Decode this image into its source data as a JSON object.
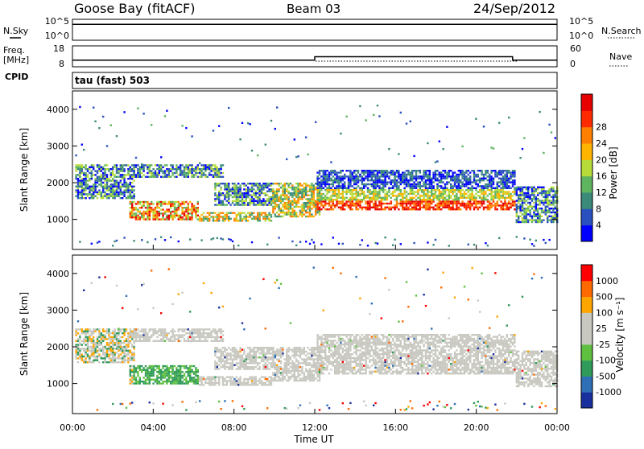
{
  "header": {
    "station": "Goose Bay (fitACF)",
    "beam": "Beam 03",
    "date": "24/Sep/2012"
  },
  "labels": {
    "nsky": "N.Sky",
    "nsearch": "N.Search",
    "freq_line1": "Freq.",
    "freq_line2": "[MHz]",
    "nave": "Nave",
    "cpid": "CPID",
    "cpid_value": "tau (fast) 503"
  },
  "colors": {
    "power_scale": [
      "#0000ff",
      "#2a4fbf",
      "#3b8a7a",
      "#5fb45f",
      "#b7dc3a",
      "#ffb400",
      "#ff7f00",
      "#ff2a00",
      "#e60000"
    ],
    "velocity_scale": [
      "#1a2f9e",
      "#2f6fb5",
      "#2f9a5a",
      "#5fc040",
      "#c8c8c0",
      "#c8c8c0",
      "#ffa500",
      "#ff6a00",
      "#ff0000"
    ]
  },
  "chart_data": [
    {
      "type": "line",
      "panel": "noise",
      "series": [
        {
          "name": "N.Sky",
          "x": [
            "00:00",
            "06:00",
            "12:00",
            "18:00",
            "21:48",
            "24:00"
          ],
          "values": [
            10000.0,
            10000.0,
            10000.0,
            10000.0,
            10000.0,
            10000.0
          ]
        }
      ],
      "left_ticks": [
        "10^5",
        "10^0"
      ],
      "right_ticks": [
        "10^5",
        "10^0"
      ]
    },
    {
      "type": "line",
      "panel": "frequency",
      "series": [
        {
          "name": "Freq.",
          "x": [
            "00:00",
            "12:00",
            "12:00",
            "21:48",
            "21:48",
            "24:00"
          ],
          "values": [
            10.5,
            10.5,
            12.5,
            12.5,
            10.5,
            10.5
          ]
        }
      ],
      "left_ticks": [
        "18",
        "8"
      ],
      "right_ticks": [
        "60",
        "0"
      ]
    },
    {
      "type": "heatmap",
      "panel": "power",
      "ylabel": "Slant Range [km]",
      "ylim": [
        180,
        4500
      ],
      "y_ticks": [
        1000,
        2000,
        3000,
        4000
      ],
      "colorbar_label": "Power [dB]",
      "colorbar_ticks": [
        4,
        8,
        12,
        16,
        20,
        24,
        28
      ],
      "colorbar_range": [
        0,
        32
      ]
    },
    {
      "type": "heatmap",
      "panel": "velocity",
      "ylabel": "Slant Range [km]",
      "ylim": [
        180,
        4500
      ],
      "y_ticks": [
        1000,
        2000,
        3000,
        4000
      ],
      "colorbar_label": "Velocity [m s⁻¹]",
      "colorbar_ticks": [
        "1000",
        "500",
        "100",
        "25",
        "-25",
        "-100",
        "-500",
        "-1000"
      ]
    }
  ],
  "x_axis": {
    "ticks": [
      "00:00",
      "04:00",
      "08:00",
      "12:00",
      "16:00",
      "20:00",
      "00:00"
    ],
    "label": "Time UT"
  }
}
